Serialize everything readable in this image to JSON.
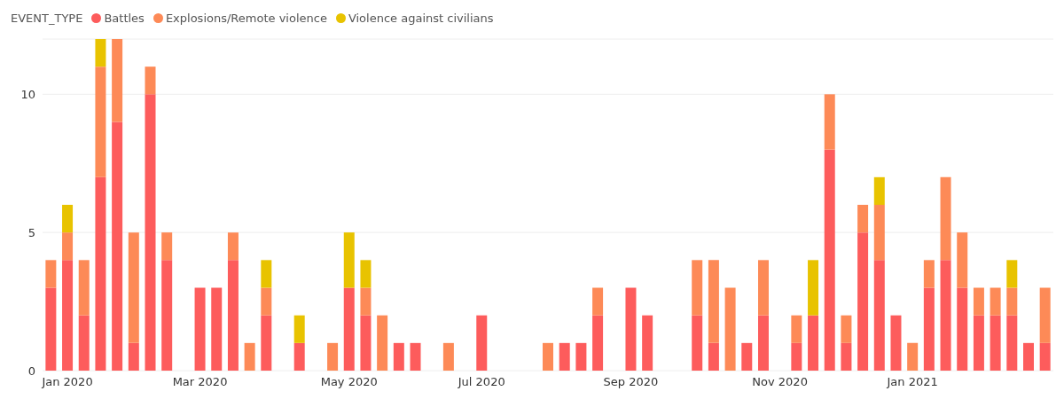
{
  "chart_data": {
    "type": "bar",
    "stacked": true,
    "legend_title": "EVENT_TYPE",
    "legend": "top left",
    "grid": "y",
    "categories": [
      null,
      "Jan 2020",
      null,
      null,
      null,
      null,
      null,
      null,
      null,
      "Mar 2020",
      null,
      null,
      null,
      null,
      null,
      null,
      null,
      null,
      "May 2020",
      null,
      null,
      null,
      null,
      null,
      null,
      null,
      "Jul 2020",
      null,
      null,
      null,
      null,
      null,
      null,
      null,
      null,
      "Sep 2020",
      null,
      null,
      null,
      null,
      null,
      null,
      null,
      null,
      "Nov 2020",
      null,
      null,
      null,
      null,
      null,
      null,
      null,
      "Jan 2021",
      null,
      null,
      null,
      null,
      null,
      null,
      null,
      null
    ],
    "ylim": [
      0,
      12
    ],
    "yticks": [
      0,
      5,
      10
    ],
    "series": [
      {
        "name": "Battles",
        "color": "#fd5c5c",
        "values": [
          3,
          4,
          2,
          7,
          9,
          1,
          10,
          4,
          null,
          3,
          3,
          4,
          null,
          2,
          null,
          1,
          null,
          null,
          3,
          2,
          null,
          1,
          1,
          null,
          null,
          null,
          2,
          null,
          null,
          null,
          null,
          1,
          1,
          2,
          null,
          3,
          2,
          null,
          null,
          2,
          1,
          null,
          1,
          2,
          null,
          1,
          2,
          8,
          1,
          5,
          4,
          2,
          null,
          3,
          4,
          3,
          2,
          2,
          2,
          1,
          1
        ]
      },
      {
        "name": "Explosions/Remote violence",
        "color": "#fd8a57",
        "values": [
          1,
          1,
          2,
          4,
          3,
          4,
          1,
          1,
          null,
          null,
          null,
          1,
          1,
          1,
          null,
          null,
          null,
          1,
          null,
          1,
          2,
          null,
          null,
          null,
          1,
          null,
          null,
          null,
          null,
          null,
          1,
          null,
          null,
          1,
          null,
          null,
          null,
          null,
          null,
          2,
          3,
          3,
          null,
          2,
          null,
          1,
          null,
          2,
          1,
          1,
          2,
          null,
          1,
          1,
          3,
          2,
          1,
          1,
          1,
          null,
          2
        ]
      },
      {
        "name": "Violence against civilians",
        "color": "#e8c300",
        "values": [
          null,
          1,
          null,
          1,
          null,
          null,
          null,
          null,
          null,
          null,
          null,
          null,
          null,
          1,
          null,
          1,
          null,
          null,
          2,
          1,
          null,
          null,
          null,
          null,
          null,
          null,
          null,
          null,
          null,
          null,
          null,
          null,
          null,
          null,
          null,
          null,
          null,
          null,
          null,
          null,
          null,
          null,
          null,
          null,
          null,
          null,
          2,
          null,
          null,
          null,
          1,
          null,
          null,
          null,
          null,
          null,
          null,
          null,
          1,
          null,
          null
        ]
      }
    ]
  }
}
